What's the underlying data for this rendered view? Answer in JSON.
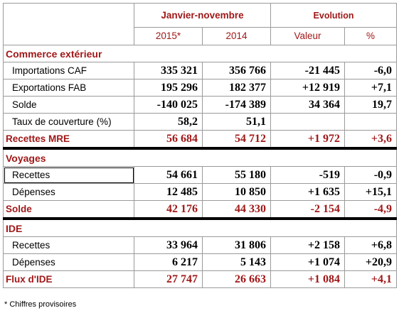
{
  "header": {
    "period": "Janvier-novembre",
    "evolution": "Evolution",
    "year1": "2015*",
    "year2": "2014",
    "valeur": "Valeur",
    "pct": "%"
  },
  "sections": {
    "commerce": "Commerce extérieur",
    "voyages": "Voyages",
    "ide": "IDE"
  },
  "rows": {
    "importations": [
      "Importations CAF",
      "335 321",
      "356 766",
      "-21 445",
      "-6,0"
    ],
    "exportations": [
      "Exportations FAB",
      "195 296",
      "182 377",
      "+12 919",
      "+7,1"
    ],
    "solde_commerce": [
      "Solde",
      "-140 025",
      "-174 389",
      "34 364",
      "19,7"
    ],
    "taux": [
      "Taux de couverture (%)",
      "58,2",
      "51,1",
      "",
      ""
    ],
    "mre": [
      "Recettes MRE",
      "56 684",
      "54 712",
      "+1 972",
      "+3,6"
    ],
    "voy_recettes": [
      "Recettes",
      "54 661",
      "55 180",
      "-519",
      "-0,9"
    ],
    "voy_depenses": [
      "Dépenses",
      "12 485",
      "10 850",
      "+1 635",
      "+15,1"
    ],
    "voy_solde": [
      "Solde",
      "42 176",
      "44 330",
      "-2 154",
      "-4,9"
    ],
    "ide_recettes": [
      "Recettes",
      "33 964",
      "31 806",
      "+2 158",
      "+6,8"
    ],
    "ide_depenses": [
      "Dépenses",
      "6 217",
      "5 143",
      "+1 074",
      "+20,9"
    ],
    "ide_flux": [
      "Flux d'IDE",
      "27 747",
      "26 663",
      "+1 084",
      "+4,1"
    ]
  },
  "footnote": "* Chiffres provisoires",
  "colors": {
    "accent": "#a01818",
    "border": "#9a9a9a"
  }
}
